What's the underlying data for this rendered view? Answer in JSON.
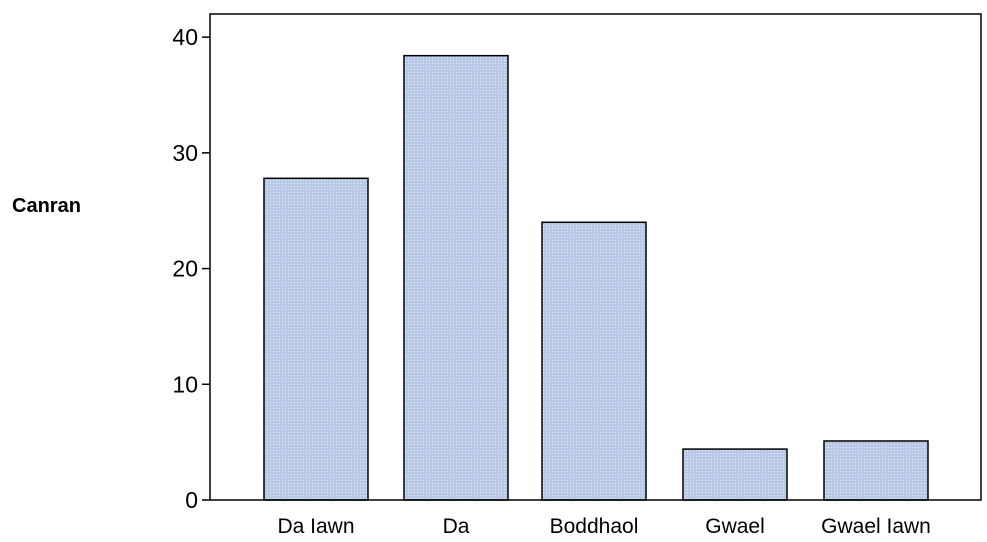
{
  "chart_data": {
    "type": "bar",
    "categories": [
      "Da Iawn",
      "Da",
      "Boddhaol",
      "Gwael",
      "Gwael Iawn"
    ],
    "values": [
      27.8,
      38.4,
      24.0,
      4.4,
      5.1
    ],
    "ylabel": "Canran",
    "xlabel": "",
    "ylim": [
      0,
      42
    ],
    "yticks": [
      0,
      10,
      20,
      30,
      40
    ],
    "grid": false,
    "bar_fill": "#b7c9e6",
    "bar_stroke": "#000000"
  }
}
